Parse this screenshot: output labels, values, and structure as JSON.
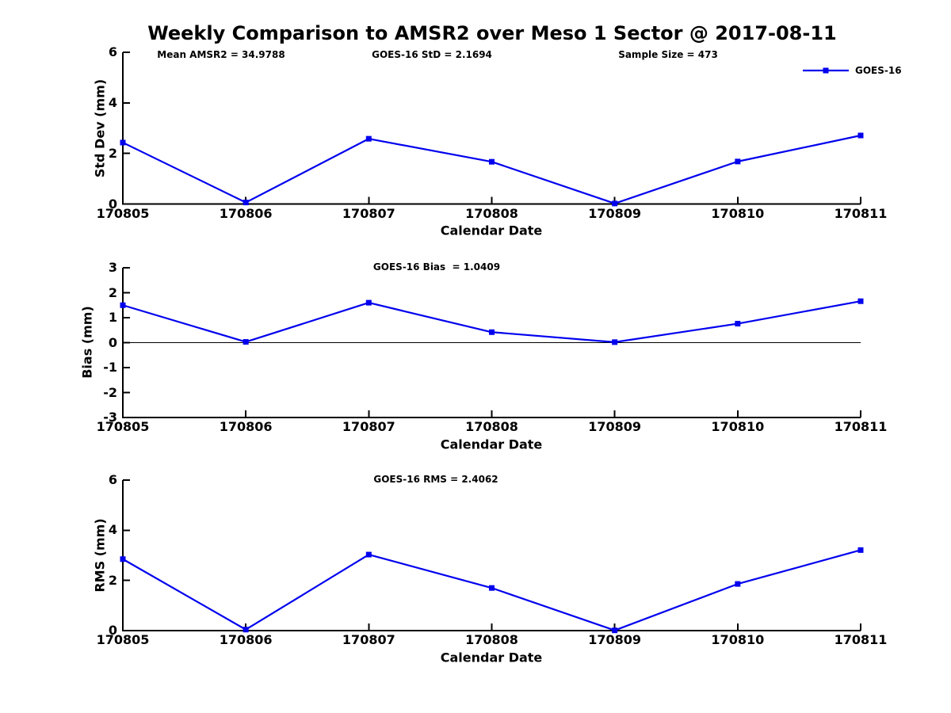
{
  "figure": {
    "title": "Weekly Comparison to AMSR2 over Meso 1 Sector @ 2017-08-11",
    "background_color": "#ffffff",
    "line_color": "#0000ee",
    "axis_color": "#000000"
  },
  "chart_data": [
    {
      "type": "line",
      "id": "std-dev",
      "title": "",
      "xlabel": "Calendar Date",
      "ylabel": "Std Dev (mm)",
      "categories": [
        "170805",
        "170806",
        "170807",
        "170808",
        "170809",
        "170810",
        "170811"
      ],
      "series": [
        {
          "name": "GOES-16",
          "values": [
            2.43,
            0.06,
            2.58,
            1.67,
            0.02,
            1.68,
            2.71
          ]
        }
      ],
      "ylim": [
        0,
        6
      ],
      "yticks": [
        0,
        2,
        4,
        6
      ],
      "grid": false,
      "zero_line": false,
      "annotations": [
        "Mean AMSR2 = 34.9788",
        "GOES-16 StD = 2.1694",
        "Sample Size = 473"
      ],
      "legend": {
        "label": "GOES-16",
        "position": "top-right"
      }
    },
    {
      "type": "line",
      "id": "bias",
      "title": "",
      "xlabel": "Calendar Date",
      "ylabel": "Bias (mm)",
      "categories": [
        "170805",
        "170806",
        "170807",
        "170808",
        "170809",
        "170810",
        "170811"
      ],
      "series": [
        {
          "name": "GOES-16",
          "values": [
            1.5,
            0.03,
            1.6,
            0.42,
            0.02,
            0.76,
            1.66
          ]
        }
      ],
      "ylim": [
        -3,
        3
      ],
      "yticks": [
        -3,
        -2,
        -1,
        0,
        1,
        2,
        3
      ],
      "grid": false,
      "zero_line": true,
      "annotations": [
        "GOES-16 Bias  = 1.0409"
      ]
    },
    {
      "type": "line",
      "id": "rms",
      "title": "",
      "xlabel": "Calendar Date",
      "ylabel": "RMS (mm)",
      "categories": [
        "170805",
        "170806",
        "170807",
        "170808",
        "170809",
        "170810",
        "170811"
      ],
      "series": [
        {
          "name": "GOES-16",
          "values": [
            2.85,
            0.04,
            3.03,
            1.7,
            0.01,
            1.86,
            3.21
          ]
        }
      ],
      "ylim": [
        0,
        6
      ],
      "yticks": [
        0,
        2,
        4,
        6
      ],
      "grid": false,
      "zero_line": false,
      "annotations": [
        "GOES-16 RMS = 2.4062"
      ]
    }
  ]
}
